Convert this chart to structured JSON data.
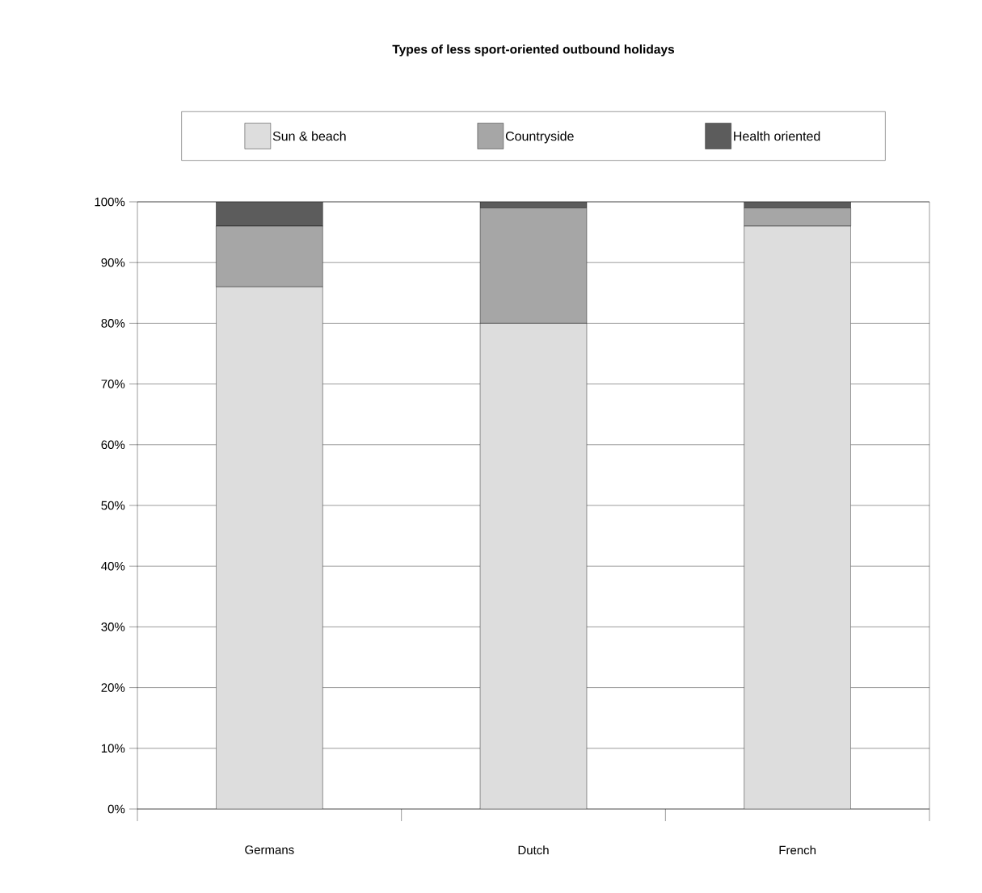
{
  "chart_data": {
    "type": "bar",
    "stacked": true,
    "title": "**Types of less sport-oriented outbound holidays**",
    "categories": [
      "Germans",
      "Dutch",
      "French"
    ],
    "series": [
      {
        "name": "Sun & beach",
        "color": "#dddddd",
        "values": [
          86,
          80,
          96
        ]
      },
      {
        "name": "Countryside",
        "color": "#a6a6a6",
        "values": [
          10,
          19,
          3
        ]
      },
      {
        "name": "Health oriented",
        "color": "#5c5c5c",
        "values": [
          4,
          1,
          1
        ]
      }
    ],
    "ylim": [
      0,
      100
    ],
    "yticks": [
      {
        "value": 0,
        "label": "0%"
      },
      {
        "value": 10,
        "label": "10%"
      },
      {
        "value": 20,
        "label": "20%"
      },
      {
        "value": 30,
        "label": "30%"
      },
      {
        "value": 40,
        "label": "40%"
      },
      {
        "value": 50,
        "label": "50%"
      },
      {
        "value": 60,
        "label": "60%"
      },
      {
        "value": 70,
        "label": "70%"
      },
      {
        "value": 80,
        "label": "80%"
      },
      {
        "value": 90,
        "label": "90%"
      },
      {
        "value": 100,
        "label": "100%"
      }
    ],
    "grid": "y",
    "legend": "top"
  }
}
